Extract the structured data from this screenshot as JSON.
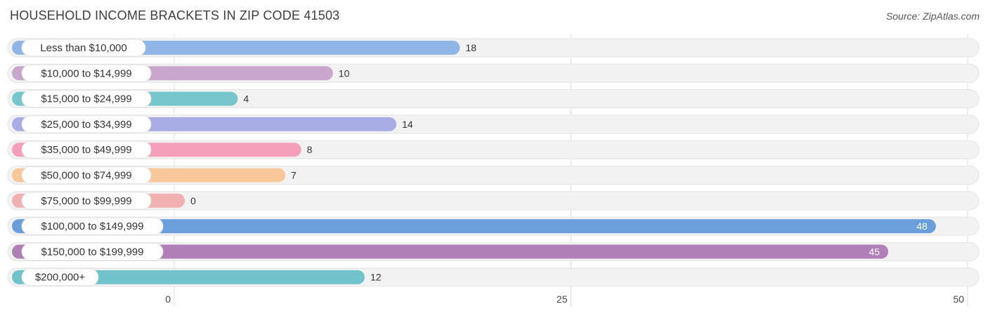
{
  "chart_data": {
    "type": "bar",
    "orientation": "horizontal",
    "title": "HOUSEHOLD INCOME BRACKETS IN ZIP CODE 41503",
    "source": "Source: ZipAtlas.com",
    "xlim": [
      0,
      50
    ],
    "ticks": [
      0,
      25,
      50
    ],
    "tick_labels": [
      "0",
      "25",
      "50"
    ],
    "grid": true,
    "categories": [
      "Less than $10,000",
      "$10,000 to $14,999",
      "$15,000 to $24,999",
      "$25,000 to $34,999",
      "$35,000 to $49,999",
      "$50,000 to $74,999",
      "$75,000 to $99,999",
      "$100,000 to $149,999",
      "$150,000 to $199,999",
      "$200,000+"
    ],
    "values": [
      18,
      10,
      4,
      14,
      8,
      7,
      0,
      48,
      45,
      12
    ],
    "value_labels": [
      "18",
      "10",
      "4",
      "14",
      "8",
      "7",
      "0",
      "48",
      "45",
      "12"
    ],
    "colors": [
      "#8fb6e6",
      "#c9a6cc",
      "#77c6cc",
      "#a9ade6",
      "#f59fbb",
      "#f8c79a",
      "#f0b1b0",
      "#6a9fdc",
      "#b07fb8",
      "#70c2cb"
    ]
  }
}
